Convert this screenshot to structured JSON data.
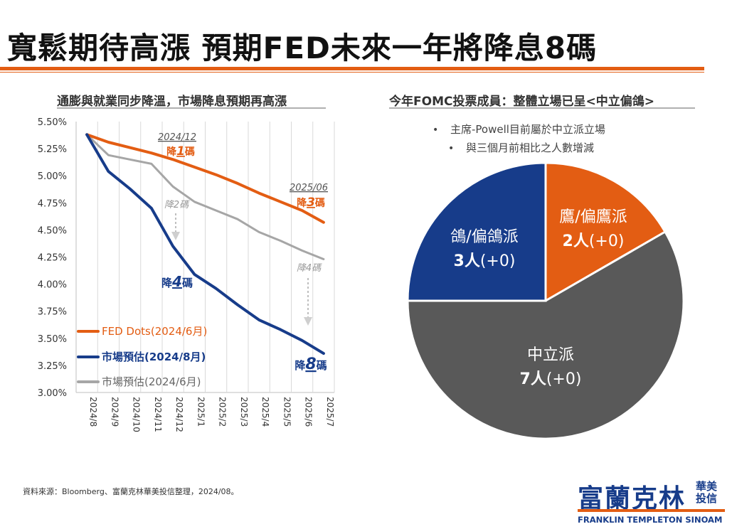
{
  "page": {
    "title": "寬鬆期待高漲  預期FED未來一年將降息8碼",
    "source": "資料來源：Bloomberg、富蘭克林華美投信整理，2024/08。",
    "logo_cn": "富蘭克林",
    "logo_cn_small": "華美投信",
    "logo_en": "FRANKLIN TEMPLETON SINOAM"
  },
  "left_chart_title": "通膨與就業同步降溫，市場降息預期再高漲",
  "right_chart_title": "今年FOMC投票成員：整體立場已呈<中立偏鴿>",
  "chart_data": [
    {
      "type": "line",
      "title": "通膨與就業同步降溫，市場降息預期再高漲",
      "categories": [
        "2024/8",
        "2024/9",
        "2024/10",
        "2024/11",
        "2024/12",
        "2025/1",
        "2025/2",
        "2025/3",
        "2025/4",
        "2025/5",
        "2025/6",
        "2025/7"
      ],
      "ylim": [
        3.0,
        5.5
      ],
      "yticks": [
        "5.50%",
        "5.25%",
        "5.00%",
        "4.75%",
        "4.50%",
        "4.25%",
        "4.00%",
        "3.75%",
        "3.50%",
        "3.25%",
        "3.00%"
      ],
      "series": [
        {
          "name": "FED Dots(2024/6月)",
          "color": "#e35d13",
          "values": [
            5.38,
            5.31,
            5.26,
            5.21,
            5.15,
            5.08,
            5.01,
            4.93,
            4.84,
            4.76,
            4.68,
            4.57
          ]
        },
        {
          "name": "市場預估(2024/8月)",
          "color": "#173c8a",
          "values": [
            5.38,
            5.04,
            4.88,
            4.7,
            4.35,
            4.09,
            3.96,
            3.81,
            3.67,
            3.58,
            3.48,
            3.36
          ]
        },
        {
          "name": "市場預估(2024/6月)",
          "color": "#a6a6a6",
          "values": [
            5.38,
            5.19,
            5.15,
            5.11,
            4.9,
            4.76,
            4.68,
            4.6,
            4.48,
            4.4,
            4.31,
            4.23
          ]
        }
      ],
      "annotations": [
        {
          "date": "2024/12",
          "cut": "降1碼",
          "label_date": "2024/12",
          "label_cut": "降",
          "label_num": "1",
          "label_unit": "碼"
        },
        {
          "date": "2025/06",
          "label_date": "2025/06",
          "label_cut": "降",
          "label_num": "3",
          "label_unit": "碼"
        },
        {
          "label": "降2碼"
        },
        {
          "label_cut": "降",
          "label_num": "4",
          "label_unit": "碼"
        },
        {
          "label": "降4碼"
        },
        {
          "label_cut": "降",
          "label_num": "8",
          "label_unit": "碼"
        }
      ]
    },
    {
      "type": "pie",
      "title": "今年FOMC投票成員：整體立場已呈<中立偏鴿>",
      "notes": [
        "主席-Powell目前屬於中立派立場",
        "與三個月前相比之人數增減"
      ],
      "slices": [
        {
          "name": "鷹/偏鷹派",
          "value": 2,
          "label": "2人(+0)",
          "color": "#e35d13"
        },
        {
          "name": "中立派",
          "value": 7,
          "label": "7人(+0)",
          "color": "#595959"
        },
        {
          "name": "鴿/偏鴿派",
          "value": 3,
          "label": "3人(+0)",
          "color": "#173c8a"
        }
      ]
    }
  ]
}
